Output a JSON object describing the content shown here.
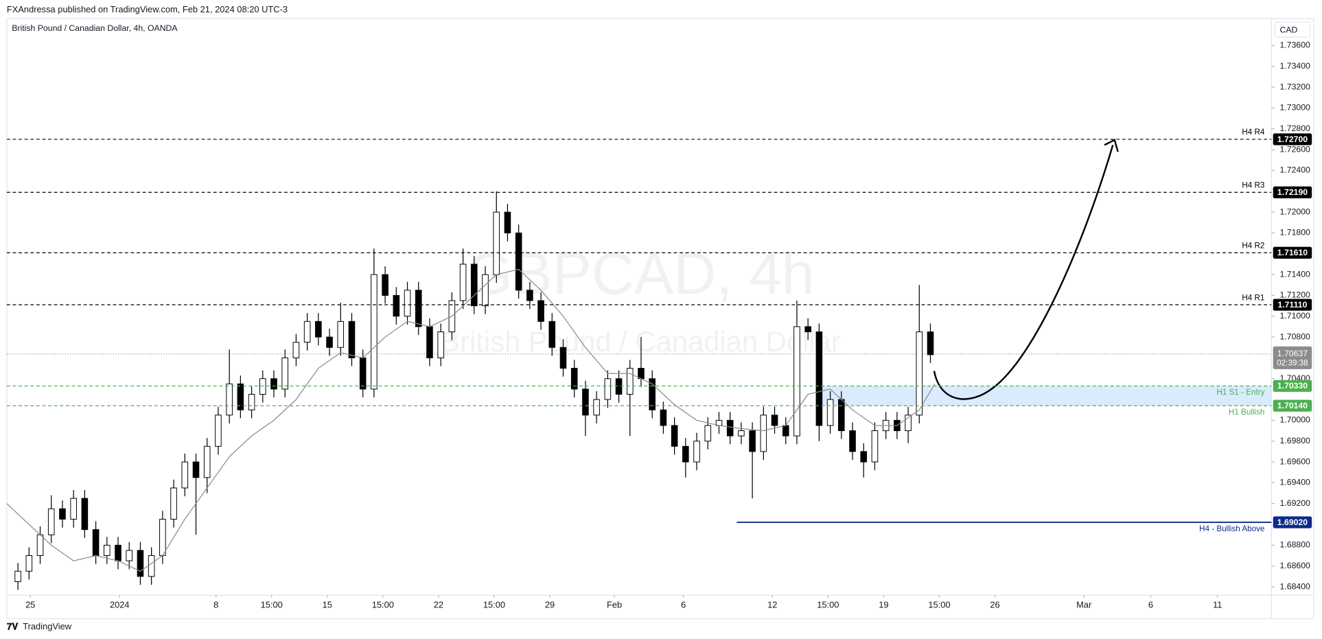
{
  "header": "FXAndressa published on TradingView.com, Feb 21, 2024 08:20 UTC-3",
  "footer": "TradingView",
  "chart_data": {
    "type": "candlestick",
    "title": "British Pound / Canadian Dollar, 4h, OANDA",
    "watermark_symbol": "GBPCAD, 4h",
    "watermark_name": "British Pound / Canadian Dollar",
    "currency": "CAD",
    "up_color": "#ffffff",
    "down_color": "#000000",
    "x": [
      0.5,
      1,
      1.5,
      2,
      2.5,
      3,
      3.5,
      4,
      4.5,
      5,
      5.5,
      6,
      6.5,
      7,
      7.5,
      8,
      8.5,
      9,
      9.5,
      10,
      10.5,
      11,
      11.5,
      12,
      12.5,
      13,
      13.5,
      14,
      14.5,
      15,
      15.5,
      16,
      16.5,
      17,
      17.5,
      18,
      18.5,
      19,
      19.5,
      20,
      20.5,
      21,
      21.5,
      22,
      22.5,
      23,
      23.5,
      24,
      24.5,
      25,
      25.5,
      26,
      26.5,
      27,
      27.5,
      28,
      28.5,
      29,
      29.5,
      30,
      30.5,
      31,
      31.5,
      32,
      32.5,
      33,
      33.5,
      34,
      34.5,
      35,
      35.5,
      36,
      36.5,
      37,
      37.5,
      38,
      38.5,
      39,
      39.5,
      40,
      40.5,
      41,
      41.5
    ],
    "open": [
      1.6845,
      1.6855,
      1.687,
      1.689,
      1.6915,
      1.6905,
      1.6925,
      1.6895,
      1.687,
      1.688,
      1.6865,
      1.6875,
      1.685,
      1.687,
      1.6905,
      1.6935,
      1.696,
      1.6945,
      1.6975,
      1.7005,
      1.7035,
      1.701,
      1.7025,
      1.704,
      1.703,
      1.706,
      1.7075,
      1.7095,
      1.708,
      1.707,
      1.7095,
      1.706,
      1.703,
      1.714,
      1.712,
      1.71,
      1.7125,
      1.709,
      1.706,
      1.7085,
      1.7115,
      1.715,
      1.711,
      1.714,
      1.72,
      1.718,
      1.7125,
      1.7115,
      1.7095,
      1.707,
      1.705,
      1.703,
      1.7005,
      1.702,
      1.704,
      1.7025,
      1.705,
      1.704,
      1.701,
      1.6995,
      1.6975,
      1.696,
      1.698,
      1.6995,
      1.7,
      1.6985,
      1.699,
      1.697,
      1.7005,
      1.6995,
      1.6985,
      1.709,
      1.7085,
      1.6995,
      1.702,
      1.699,
      1.697,
      1.696,
      1.699,
      1.7,
      1.699,
      1.7005,
      1.7085
    ],
    "high": [
      1.6863,
      1.6878,
      1.6898,
      1.6928,
      1.6923,
      1.6933,
      1.6933,
      1.6903,
      1.6888,
      1.6888,
      1.6883,
      1.6883,
      1.6878,
      1.6913,
      1.6943,
      1.6968,
      1.6968,
      1.6983,
      1.7013,
      1.7068,
      1.7043,
      1.7033,
      1.7048,
      1.7048,
      1.7068,
      1.7083,
      1.7103,
      1.7103,
      1.7088,
      1.7113,
      1.7103,
      1.7068,
      1.7165,
      1.7148,
      1.7128,
      1.7133,
      1.7133,
      1.7098,
      1.7093,
      1.7123,
      1.7165,
      1.7158,
      1.7148,
      1.722,
      1.7208,
      1.7188,
      1.7133,
      1.7123,
      1.7103,
      1.7078,
      1.7058,
      1.7038,
      1.7028,
      1.7048,
      1.7048,
      1.7058,
      1.708,
      1.7048,
      1.7018,
      1.7003,
      1.6983,
      1.6988,
      1.7003,
      1.7008,
      1.7008,
      1.6998,
      1.6998,
      1.7013,
      1.7013,
      1.7003,
      1.7115,
      1.7098,
      1.7093,
      1.7028,
      1.7028,
      1.6998,
      1.6978,
      1.6998,
      1.7008,
      1.7008,
      1.7013,
      1.713,
      1.7093
    ],
    "low": [
      1.6837,
      1.6847,
      1.6862,
      1.6882,
      1.6897,
      1.6897,
      1.6887,
      1.6862,
      1.6862,
      1.6857,
      1.6857,
      1.6842,
      1.6842,
      1.6862,
      1.6897,
      1.6927,
      1.689,
      1.693,
      1.6967,
      1.6997,
      1.7002,
      1.7002,
      1.7017,
      1.7022,
      1.7022,
      1.7052,
      1.7067,
      1.7072,
      1.7062,
      1.7062,
      1.7052,
      1.7022,
      1.7022,
      1.7112,
      1.7092,
      1.7092,
      1.7082,
      1.7052,
      1.7052,
      1.7077,
      1.7107,
      1.7102,
      1.7102,
      1.7132,
      1.7172,
      1.7117,
      1.7107,
      1.7087,
      1.7062,
      1.7042,
      1.7022,
      1.6985,
      1.6997,
      1.7012,
      1.7017,
      1.6985,
      1.7032,
      1.7002,
      1.6987,
      1.6967,
      1.6945,
      1.6952,
      1.6972,
      1.6987,
      1.6977,
      1.6977,
      1.6925,
      1.6962,
      1.6987,
      1.6977,
      1.6977,
      1.7077,
      1.698,
      1.6987,
      1.6982,
      1.6962,
      1.6945,
      1.6952,
      1.6982,
      1.6982,
      1.6978,
      1.6997,
      1.7055
    ],
    "close": [
      1.6855,
      1.687,
      1.689,
      1.6915,
      1.6905,
      1.6925,
      1.6895,
      1.687,
      1.688,
      1.6865,
      1.6875,
      1.685,
      1.687,
      1.6905,
      1.6935,
      1.696,
      1.6945,
      1.6975,
      1.7005,
      1.7035,
      1.701,
      1.7025,
      1.704,
      1.703,
      1.706,
      1.7075,
      1.7095,
      1.708,
      1.707,
      1.7095,
      1.706,
      1.703,
      1.714,
      1.712,
      1.71,
      1.7125,
      1.709,
      1.706,
      1.7085,
      1.7115,
      1.715,
      1.711,
      1.714,
      1.72,
      1.718,
      1.7125,
      1.7115,
      1.7095,
      1.707,
      1.705,
      1.703,
      1.7005,
      1.702,
      1.704,
      1.7025,
      1.705,
      1.704,
      1.701,
      1.6995,
      1.6975,
      1.696,
      1.698,
      1.6995,
      1.7,
      1.6985,
      1.699,
      1.697,
      1.7005,
      1.6995,
      1.6985,
      1.709,
      1.7085,
      1.6995,
      1.702,
      1.699,
      1.697,
      1.696,
      1.699,
      1.7,
      1.699,
      1.7005,
      1.7085,
      1.7063
    ],
    "moving_average": {
      "color": "#8a8a8a",
      "x": [
        0,
        1,
        2,
        3,
        4,
        5,
        6,
        7,
        8,
        9,
        10,
        11,
        12,
        13,
        14,
        15,
        16,
        17,
        18,
        19,
        20,
        21,
        22,
        23,
        24,
        25,
        26,
        27,
        28,
        29,
        30,
        31,
        32,
        33,
        34,
        35,
        36,
        37,
        38,
        39,
        40,
        41,
        41.7
      ],
      "values": [
        1.692,
        1.69,
        1.688,
        1.6865,
        1.687,
        1.6865,
        1.6855,
        1.687,
        1.6905,
        1.6935,
        1.6965,
        1.6985,
        1.7,
        1.702,
        1.705,
        1.7065,
        1.706,
        1.708,
        1.7095,
        1.709,
        1.71,
        1.712,
        1.714,
        1.7145,
        1.7125,
        1.71,
        1.707,
        1.7045,
        1.7045,
        1.7035,
        1.7015,
        1.7,
        1.6995,
        1.6992,
        1.699,
        1.6995,
        1.7025,
        1.703,
        1.701,
        1.6995,
        1.6995,
        1.701,
        1.7035
      ]
    },
    "xlim": [
      0,
      56.82
    ],
    "ylim": [
      1.6832,
      1.7386
    ],
    "xticks": [
      {
        "value": 1.06,
        "label": "25"
      },
      {
        "value": 5.07,
        "label": "2024"
      },
      {
        "value": 9.4,
        "label": "8"
      },
      {
        "value": 11.9,
        "label": "15:00"
      },
      {
        "value": 14.4,
        "label": "15"
      },
      {
        "value": 16.9,
        "label": "15:00"
      },
      {
        "value": 19.4,
        "label": "22"
      },
      {
        "value": 21.9,
        "label": "15:00"
      },
      {
        "value": 24.4,
        "label": "29"
      },
      {
        "value": 27.3,
        "label": "Feb"
      },
      {
        "value": 30.4,
        "label": "6"
      },
      {
        "value": 34.4,
        "label": "12"
      },
      {
        "value": 36.9,
        "label": "15:00"
      },
      {
        "value": 39.4,
        "label": "19"
      },
      {
        "value": 41.9,
        "label": "15:00"
      },
      {
        "value": 44.4,
        "label": "26"
      },
      {
        "value": 48.4,
        "label": "Mar"
      },
      {
        "value": 51.4,
        "label": "6"
      },
      {
        "value": 54.4,
        "label": "11"
      }
    ],
    "yticks": [
      {
        "value": 1.736,
        "label": "1.73600"
      },
      {
        "value": 1.734,
        "label": "1.73400"
      },
      {
        "value": 1.732,
        "label": "1.73200"
      },
      {
        "value": 1.73,
        "label": "1.73000"
      },
      {
        "value": 1.728,
        "label": "1.72800"
      },
      {
        "value": 1.726,
        "label": "1.72600"
      },
      {
        "value": 1.724,
        "label": "1.72400"
      },
      {
        "value": 1.72,
        "label": "1.72000"
      },
      {
        "value": 1.718,
        "label": "1.71800"
      },
      {
        "value": 1.714,
        "label": "1.71400"
      },
      {
        "value": 1.712,
        "label": "1.71200"
      },
      {
        "value": 1.71,
        "label": "1.71000"
      },
      {
        "value": 1.708,
        "label": "1.70800"
      },
      {
        "value": 1.704,
        "label": "1.70400"
      },
      {
        "value": 1.7,
        "label": "1.70000"
      },
      {
        "value": 1.698,
        "label": "1.69800"
      },
      {
        "value": 1.696,
        "label": "1.69600"
      },
      {
        "value": 1.694,
        "label": "1.69400"
      },
      {
        "value": 1.692,
        "label": "1.69200"
      },
      {
        "value": 1.688,
        "label": "1.68800"
      },
      {
        "value": 1.686,
        "label": "1.68600"
      },
      {
        "value": 1.684,
        "label": "1.68400"
      }
    ],
    "levels": [
      {
        "name": "H4 R4",
        "value": 1.727,
        "label": "1.72700",
        "color": "#000000",
        "style": "dashed",
        "name_side": "above"
      },
      {
        "name": "H4 R3",
        "value": 1.7219,
        "label": "1.72190",
        "color": "#000000",
        "style": "dashed",
        "name_side": "above"
      },
      {
        "name": "H4 R2",
        "value": 1.7161,
        "label": "1.71610",
        "color": "#000000",
        "style": "dashed",
        "name_side": "above"
      },
      {
        "name": "H4 R1",
        "value": 1.7111,
        "label": "1.71110",
        "color": "#000000",
        "style": "dashed",
        "name_side": "above"
      },
      {
        "name": "H1 S1 - Entry",
        "value": 1.7033,
        "label": "1.70330",
        "color": "#4caf50",
        "style": "dashed",
        "name_side": "below"
      },
      {
        "name": "H1 Bullish",
        "value": 1.7014,
        "label": "1.70140",
        "color": "#4caf50",
        "style": "dashed",
        "name_side": "below"
      },
      {
        "name": "H4 - Bullish Above",
        "value": 1.6902,
        "label": "1.69020",
        "color": "#0d2b8c",
        "style": "solid",
        "name_side": "below",
        "x_start": 32.8
      }
    ],
    "zone": {
      "x_start": 36.6,
      "color": "#cfe6fb"
    },
    "last_price": {
      "value": 1.70637,
      "label": "1.70637",
      "countdown": "02:39:38",
      "color": "#8c8c8c"
    }
  }
}
